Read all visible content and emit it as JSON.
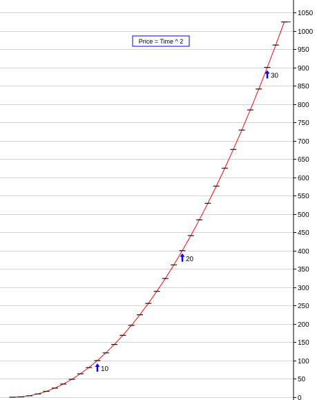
{
  "chart_data": {
    "type": "line",
    "title": "",
    "xlabel": "",
    "ylabel": "",
    "x": [
      0,
      1,
      2,
      3,
      4,
      5,
      6,
      7,
      8,
      9,
      10,
      11,
      12,
      13,
      14,
      15,
      16,
      17,
      18,
      19,
      20,
      21,
      22,
      23,
      24,
      25,
      26,
      27,
      28,
      29,
      30,
      31,
      32
    ],
    "series": [
      {
        "name": "Price = Time ^ 2",
        "color": "#ff0000",
        "marker": "dash",
        "values": [
          0,
          1,
          4,
          9,
          16,
          25,
          36,
          49,
          64,
          81,
          100,
          121,
          144,
          169,
          196,
          225,
          256,
          289,
          324,
          361,
          400,
          441,
          484,
          529,
          576,
          625,
          676,
          729,
          784,
          841,
          900,
          961,
          1024
        ]
      }
    ],
    "yticks": [
      "0",
      "50",
      "100",
      "150",
      "200",
      "250",
      "300",
      "350",
      "400",
      "450",
      "500",
      "550",
      "600",
      "650",
      "700",
      "750",
      "800",
      "850",
      "900",
      "950",
      "1000",
      "1050"
    ],
    "ylim": [
      0,
      1050
    ],
    "grid": "horizontal",
    "y_axis_side": "right",
    "legend_placement": "top-center",
    "arrow_color": "#0000ff",
    "annotations": [
      {
        "label": "10",
        "x": 10,
        "y": 100
      },
      {
        "label": "20",
        "x": 20,
        "y": 400
      },
      {
        "label": "30",
        "x": 30,
        "y": 900
      }
    ]
  }
}
